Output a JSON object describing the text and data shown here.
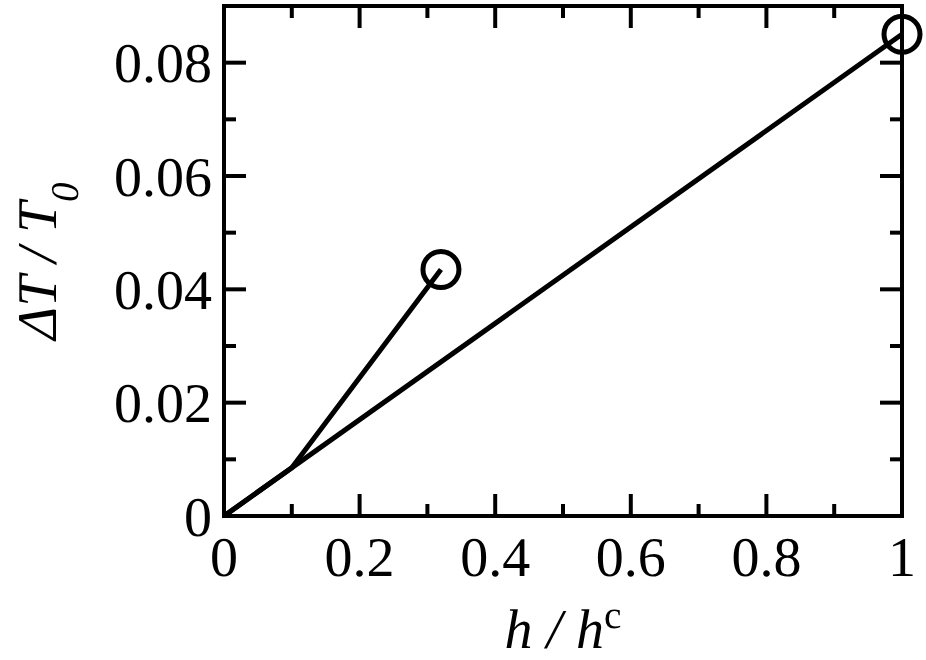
{
  "chart_data": {
    "type": "line",
    "xlabel": "h / h$^{c}$",
    "ylabel": "ΔT / T$_{0}$",
    "xlim": [
      0,
      1
    ],
    "ylim": [
      0,
      0.09
    ],
    "xticks": [
      0,
      {
        "value": 0.1,
        "label": null
      },
      0.2,
      {
        "value": 0.3,
        "label": null
      },
      0.4,
      {
        "value": 0.5,
        "label": null
      },
      0.6,
      {
        "value": 0.7,
        "label": null
      },
      0.8,
      {
        "value": 0.9,
        "label": null
      },
      1
    ],
    "yticks": [
      0,
      {
        "value": 0.01,
        "label": null
      },
      0.02,
      {
        "value": 0.03,
        "label": null
      },
      0.04,
      {
        "value": 0.05,
        "label": null
      },
      0.06,
      {
        "value": 0.07,
        "label": null
      },
      0.08
    ],
    "grid": false,
    "line_style": "solid",
    "series": [
      {
        "color": "#000000",
        "x": [
          0,
          1
        ],
        "values": [
          0,
          0.085
        ],
        "marker": "none"
      },
      {
        "color": "#000000",
        "x": [
          0,
          0.1,
          0.32
        ],
        "values": [
          0,
          0.0085,
          0.0435
        ],
        "marker": "none"
      },
      {
        "type": "scatter",
        "color": "#000000",
        "x": [
          0.32,
          1
        ],
        "values": [
          0.0435,
          0.085
        ],
        "marker": "circle"
      }
    ]
  }
}
